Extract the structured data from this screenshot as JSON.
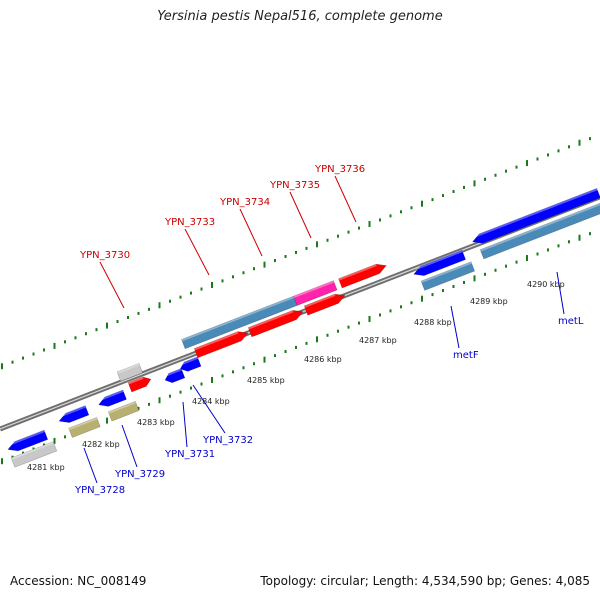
{
  "title": "Yersinia pestis Nepal516, complete genome",
  "footer": {
    "accession": "Accession: NC_008149",
    "topology": "Topology: circular; Length: 4,534,590 bp; Genes: 4,085"
  },
  "colors": {
    "forward_label": "#cc0000",
    "reverse_label": "#0000cc",
    "red": "#ff0000",
    "blue": "#0000ff",
    "steel": "#4a8ab8",
    "gray": "#c8c8c8",
    "olive": "#b8b070",
    "pink": "#ff22aa",
    "tick": "#1a7a1a",
    "backbone": "#8a8a8a"
  },
  "kbp_labels": [
    "4281 kbp",
    "4282 kbp",
    "4283 kbp",
    "4284 kbp",
    "4285 kbp",
    "4286 kbp",
    "4287 kbp",
    "4288 kbp",
    "4289 kbp",
    "4290 kbp"
  ],
  "top_gene_labels": [
    "YPN_3730",
    "YPN_3733",
    "YPN_3734",
    "YPN_3735",
    "YPN_3736"
  ],
  "bottom_gene_labels": [
    "YPN_3728",
    "YPN_3729",
    "YPN_3731",
    "YPN_3732",
    "metF",
    "metL"
  ]
}
